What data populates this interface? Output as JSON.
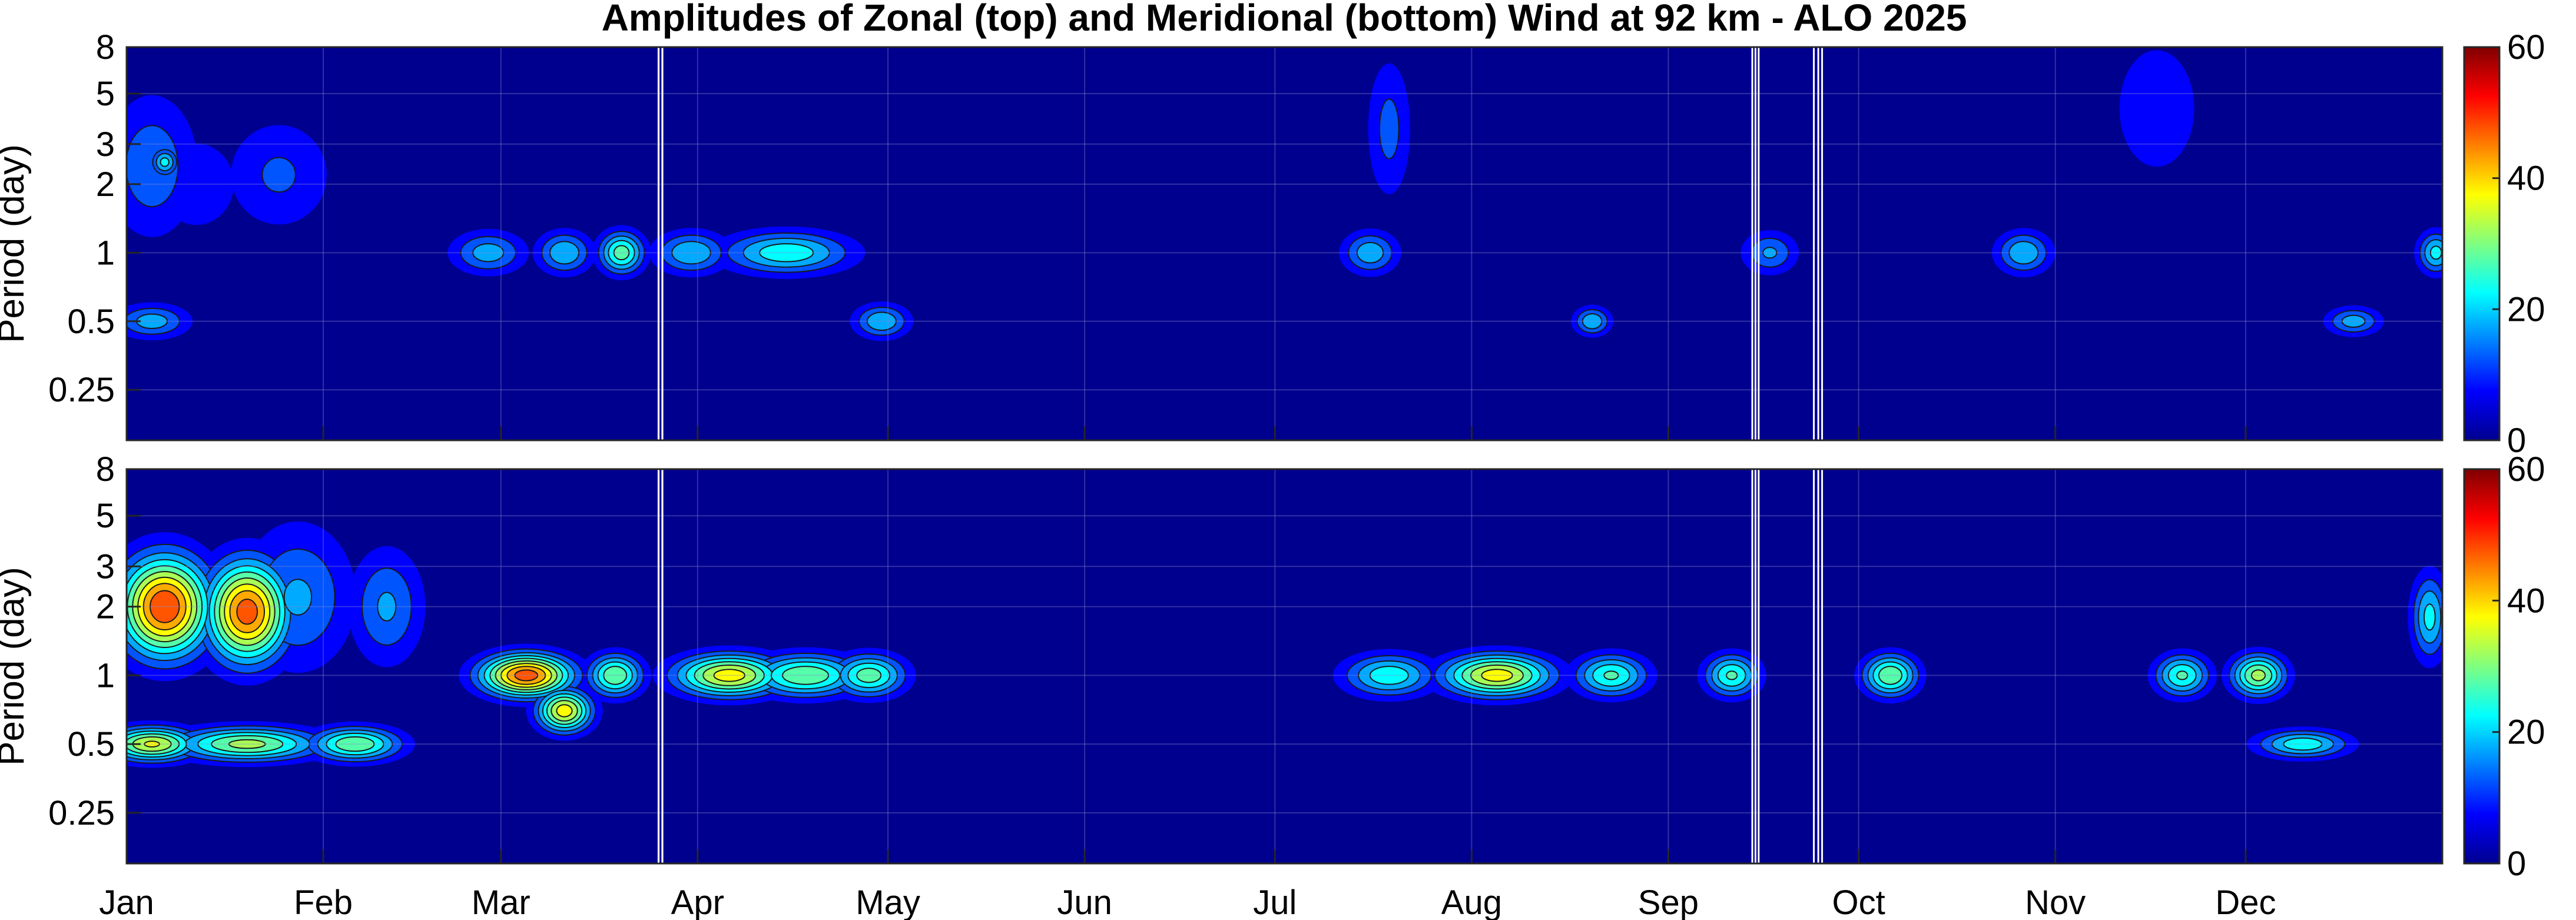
{
  "chart_data": {
    "type": "heatmap",
    "title": "Amplitudes of Zonal (top) and Meridional (bottom) Wind at 92 km - ALO 2025",
    "x_tick_labels": [
      "Jan",
      "Feb",
      "Mar",
      "Apr",
      "May",
      "Jun",
      "Jul",
      "Aug",
      "Sep",
      "Oct",
      "Nov",
      "Dec"
    ],
    "x_tick_days": [
      1,
      32,
      60,
      91,
      121,
      152,
      182,
      213,
      244,
      274,
      305,
      335
    ],
    "xlim": [
      1,
      366
    ],
    "ylim": [
      0.15,
      8
    ],
    "yscale": "log",
    "y_tick_values": [
      0.25,
      0.5,
      1,
      2,
      3,
      5,
      8
    ],
    "y_tick_labels": [
      "0.25",
      "0.5",
      "1",
      "2",
      "3",
      "5",
      "8"
    ],
    "grid": true,
    "data_gaps_days": [
      [
        84.7,
        85.0
      ],
      [
        85.3,
        85.6
      ],
      [
        257.1,
        257.3
      ],
      [
        257.6,
        257.8
      ],
      [
        258.1,
        258.3
      ],
      [
        266.8,
        267.0
      ],
      [
        267.5,
        267.7
      ],
      [
        268.1,
        268.3
      ]
    ],
    "colorbar": {
      "min": 0,
      "max": 60,
      "tick_values": [
        0,
        20,
        40,
        60
      ],
      "tick_labels": [
        "0",
        "20",
        "40",
        "60"
      ],
      "colormap": "jet"
    },
    "panels": [
      {
        "ylabel": "Period (day)",
        "hotspots": [
          {
            "day": 5,
            "period": 2.4,
            "amp": 14,
            "ds": 5,
            "dp": 0.5
          },
          {
            "day": 7,
            "period": 2.5,
            "amp": 22,
            "ds": 1.5,
            "dp": 0.1
          },
          {
            "day": 12,
            "period": 2.0,
            "amp": 10,
            "ds": 5,
            "dp": 0.35
          },
          {
            "day": 25,
            "period": 2.2,
            "amp": 11,
            "ds": 6,
            "dp": 0.4
          },
          {
            "day": 58,
            "period": 1.0,
            "amp": 18,
            "ds": 4,
            "dp": 0.15
          },
          {
            "day": 70,
            "period": 1.0,
            "amp": 20,
            "ds": 3,
            "dp": 0.15
          },
          {
            "day": 79,
            "period": 1.0,
            "amp": 28,
            "ds": 2.5,
            "dp": 0.15
          },
          {
            "day": 90,
            "period": 1.0,
            "amp": 20,
            "ds": 4,
            "dp": 0.15
          },
          {
            "day": 105,
            "period": 1.0,
            "amp": 24,
            "ds": 7,
            "dp": 0.15
          },
          {
            "day": 5,
            "period": 0.5,
            "amp": 18,
            "ds": 4,
            "dp": 0.12
          },
          {
            "day": 120,
            "period": 0.5,
            "amp": 20,
            "ds": 3,
            "dp": 0.12
          },
          {
            "day": 197,
            "period": 1.0,
            "amp": 19,
            "ds": 3,
            "dp": 0.15
          },
          {
            "day": 200,
            "period": 3.5,
            "amp": 12,
            "ds": 2.5,
            "dp": 0.5
          },
          {
            "day": 232,
            "period": 0.5,
            "amp": 20,
            "ds": 2,
            "dp": 0.1
          },
          {
            "day": 260,
            "period": 1.0,
            "amp": 16,
            "ds": 3,
            "dp": 0.15
          },
          {
            "day": 300,
            "period": 1.0,
            "amp": 20,
            "ds": 3,
            "dp": 0.15
          },
          {
            "day": 321,
            "period": 4.3,
            "amp": 10,
            "ds": 5,
            "dp": 0.5
          },
          {
            "day": 365,
            "period": 1.0,
            "amp": 22,
            "ds": 2,
            "dp": 0.15
          },
          {
            "day": 352,
            "period": 0.5,
            "amp": 18,
            "ds": 3,
            "dp": 0.1
          }
        ]
      },
      {
        "ylabel": "Period (day)",
        "hotspots": [
          {
            "day": 7,
            "period": 2.0,
            "amp": 50,
            "ds": 5,
            "dp": 0.35
          },
          {
            "day": 20,
            "period": 1.9,
            "amp": 48,
            "ds": 4.5,
            "dp": 0.35
          },
          {
            "day": 28,
            "period": 2.2,
            "amp": 16,
            "ds": 6,
            "dp": 0.5
          },
          {
            "day": 42,
            "period": 2.0,
            "amp": 16,
            "ds": 4,
            "dp": 0.4
          },
          {
            "day": 5,
            "period": 0.5,
            "amp": 36,
            "ds": 5,
            "dp": 0.12
          },
          {
            "day": 20,
            "period": 0.5,
            "amp": 32,
            "ds": 8,
            "dp": 0.12
          },
          {
            "day": 37,
            "period": 0.5,
            "amp": 30,
            "ds": 5,
            "dp": 0.12
          },
          {
            "day": 64,
            "period": 1.0,
            "amp": 48,
            "ds": 5,
            "dp": 0.15
          },
          {
            "day": 70,
            "period": 0.7,
            "amp": 38,
            "ds": 3,
            "dp": 0.15
          },
          {
            "day": 78,
            "period": 1.0,
            "amp": 30,
            "ds": 3,
            "dp": 0.15
          },
          {
            "day": 96,
            "period": 1.0,
            "amp": 38,
            "ds": 6,
            "dp": 0.15
          },
          {
            "day": 108,
            "period": 1.0,
            "amp": 30,
            "ds": 6,
            "dp": 0.15
          },
          {
            "day": 118,
            "period": 1.0,
            "amp": 28,
            "ds": 4,
            "dp": 0.15
          },
          {
            "day": 200,
            "period": 1.0,
            "amp": 24,
            "ds": 5,
            "dp": 0.15
          },
          {
            "day": 217,
            "period": 1.0,
            "amp": 38,
            "ds": 6,
            "dp": 0.15
          },
          {
            "day": 235,
            "period": 1.0,
            "amp": 26,
            "ds": 4,
            "dp": 0.15
          },
          {
            "day": 254,
            "period": 1.0,
            "amp": 26,
            "ds": 3,
            "dp": 0.15
          },
          {
            "day": 279,
            "period": 1.0,
            "amp": 30,
            "ds": 3,
            "dp": 0.15
          },
          {
            "day": 325,
            "period": 1.0,
            "amp": 26,
            "ds": 3,
            "dp": 0.15
          },
          {
            "day": 337,
            "period": 1.0,
            "amp": 32,
            "ds": 3,
            "dp": 0.15
          },
          {
            "day": 344,
            "period": 0.5,
            "amp": 24,
            "ds": 5,
            "dp": 0.1
          },
          {
            "day": 364,
            "period": 1.8,
            "amp": 22,
            "ds": 2,
            "dp": 0.3
          }
        ]
      }
    ]
  }
}
